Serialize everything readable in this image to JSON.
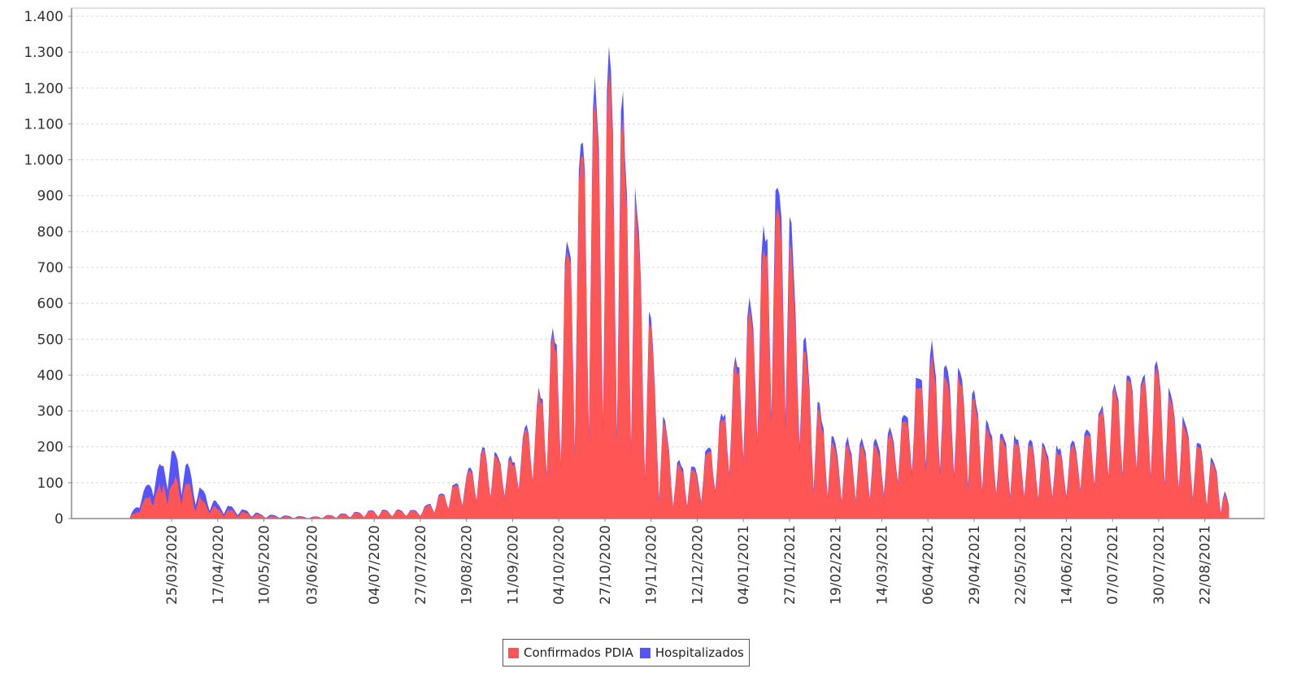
{
  "chart_data": {
    "type": "area",
    "stacked": true,
    "title": "",
    "xlabel": "",
    "ylabel": "",
    "ylim": [
      0,
      1400
    ],
    "y_ticks": [
      0,
      100,
      200,
      300,
      400,
      500,
      600,
      700,
      800,
      900,
      1000,
      1100,
      1200,
      1300,
      1400
    ],
    "y_tick_labels": [
      "0",
      "100",
      "200",
      "300",
      "400",
      "500",
      "600",
      "700",
      "800",
      "900",
      "1.000",
      "1.100",
      "1.200",
      "1.300",
      "1.400"
    ],
    "x_tick_labels": [
      "25/03/2020",
      "17/04/2020",
      "10/05/2020",
      "03/06/2020",
      "04/07/2020",
      "27/07/2020",
      "19/08/2020",
      "11/09/2020",
      "04/10/2020",
      "27/10/2020",
      "19/11/2020",
      "12/12/2020",
      "04/01/2021",
      "27/01/2021",
      "19/02/2021",
      "14/03/2021",
      "06/04/2021",
      "29/04/2021",
      "22/05/2021",
      "14/06/2021",
      "07/07/2021",
      "30/07/2021",
      "22/08/2021"
    ],
    "x_range": [
      "04/03/2020",
      "03/09/2021"
    ],
    "grid": true,
    "legend_position": "bottom",
    "series": [
      {
        "name": "Confirmados PDIA",
        "color": "#ff5555"
      },
      {
        "name": "Hospitalizados",
        "color": "#5555ff"
      }
    ],
    "weekly_envelope_note": "Approximate weekly peak (stacked total) and weekend trough read from the chart; values per tick-interval date",
    "envelope": [
      {
        "date": "04/03/2020",
        "peak": 5,
        "trough": 0,
        "hosp": 2
      },
      {
        "date": "14/03/2020",
        "peak": 110,
        "trough": 60,
        "hosp": 40
      },
      {
        "date": "25/03/2020",
        "peak": 205,
        "trough": 90,
        "hosp": 70
      },
      {
        "date": "01/04/2020",
        "peak": 165,
        "trough": 60,
        "hosp": 50
      },
      {
        "date": "08/04/2020",
        "peak": 90,
        "trough": 30,
        "hosp": 25
      },
      {
        "date": "17/04/2020",
        "peak": 45,
        "trough": 15,
        "hosp": 12
      },
      {
        "date": "10/05/2020",
        "peak": 12,
        "trough": 2,
        "hosp": 3
      },
      {
        "date": "03/06/2020",
        "peak": 5,
        "trough": 0,
        "hosp": 1
      },
      {
        "date": "04/07/2020",
        "peak": 25,
        "trough": 5,
        "hosp": 2
      },
      {
        "date": "27/07/2020",
        "peak": 25,
        "trough": 8,
        "hosp": 2
      },
      {
        "date": "19/08/2020",
        "peak": 130,
        "trough": 40,
        "hosp": 6
      },
      {
        "date": "28/08/2020",
        "peak": 210,
        "trough": 60,
        "hosp": 8
      },
      {
        "date": "11/09/2020",
        "peak": 170,
        "trough": 70,
        "hosp": 8
      },
      {
        "date": "25/09/2020",
        "peak": 380,
        "trough": 120,
        "hosp": 12
      },
      {
        "date": "04/10/2020",
        "peak": 590,
        "trough": 150,
        "hosp": 20
      },
      {
        "date": "11/10/2020",
        "peak": 960,
        "trough": 200,
        "hosp": 25
      },
      {
        "date": "20/10/2020",
        "peak": 1260,
        "trough": 250,
        "hosp": 40
      },
      {
        "date": "27/10/2020",
        "peak": 1350,
        "trough": 280,
        "hosp": 50
      },
      {
        "date": "03/11/2020",
        "peak": 1230,
        "trough": 250,
        "hosp": 60
      },
      {
        "date": "10/11/2020",
        "peak": 990,
        "trough": 200,
        "hosp": 35
      },
      {
        "date": "17/11/2020",
        "peak": 640,
        "trough": 100,
        "hosp": 25
      },
      {
        "date": "24/11/2020",
        "peak": 330,
        "trough": 50,
        "hosp": 15
      },
      {
        "date": "01/12/2020",
        "peak": 175,
        "trough": 30,
        "hosp": 10
      },
      {
        "date": "12/12/2020",
        "peak": 150,
        "trough": 40,
        "hosp": 10
      },
      {
        "date": "22/12/2020",
        "peak": 250,
        "trough": 80,
        "hosp": 10
      },
      {
        "date": "04/01/2021",
        "peak": 540,
        "trough": 180,
        "hosp": 20
      },
      {
        "date": "11/01/2021",
        "peak": 710,
        "trough": 220,
        "hosp": 40
      },
      {
        "date": "18/01/2021",
        "peak": 970,
        "trough": 300,
        "hosp": 60
      },
      {
        "date": "25/01/2021",
        "peak": 980,
        "trough": 300,
        "hosp": 60
      },
      {
        "date": "01/02/2021",
        "peak": 620,
        "trough": 200,
        "hosp": 40
      },
      {
        "date": "08/02/2021",
        "peak": 360,
        "trough": 80,
        "hosp": 20
      },
      {
        "date": "19/02/2021",
        "peak": 220,
        "trough": 50,
        "hosp": 15
      },
      {
        "date": "14/03/2021",
        "peak": 230,
        "trough": 60,
        "hosp": 15
      },
      {
        "date": "24/03/2021",
        "peak": 280,
        "trough": 120,
        "hosp": 15
      },
      {
        "date": "06/04/2021",
        "peak": 505,
        "trough": 150,
        "hosp": 30
      },
      {
        "date": "13/04/2021",
        "peak": 455,
        "trough": 130,
        "hosp": 30
      },
      {
        "date": "20/04/2021",
        "peak": 430,
        "trough": 120,
        "hosp": 25
      },
      {
        "date": "29/04/2021",
        "peak": 380,
        "trough": 90,
        "hosp": 20
      },
      {
        "date": "06/05/2021",
        "peak": 270,
        "trough": 70,
        "hosp": 15
      },
      {
        "date": "22/05/2021",
        "peak": 230,
        "trough": 60,
        "hosp": 12
      },
      {
        "date": "14/06/2021",
        "peak": 200,
        "trough": 60,
        "hosp": 12
      },
      {
        "date": "28/06/2021",
        "peak": 280,
        "trough": 100,
        "hosp": 12
      },
      {
        "date": "07/07/2021",
        "peak": 390,
        "trough": 120,
        "hosp": 12
      },
      {
        "date": "21/07/2021",
        "peak": 410,
        "trough": 140,
        "hosp": 15
      },
      {
        "date": "30/07/2021",
        "peak": 445,
        "trough": 110,
        "hosp": 20
      },
      {
        "date": "06/08/2021",
        "peak": 340,
        "trough": 90,
        "hosp": 15
      },
      {
        "date": "15/08/2021",
        "peak": 260,
        "trough": 60,
        "hosp": 12
      },
      {
        "date": "22/08/2021",
        "peak": 195,
        "trough": 40,
        "hosp": 10
      },
      {
        "date": "29/08/2021",
        "peak": 155,
        "trough": 20,
        "hosp": 8
      },
      {
        "date": "03/09/2021",
        "peak": 40,
        "trough": 0,
        "hosp": 5
      }
    ]
  },
  "legend": {
    "items": [
      {
        "label": "Confirmados PDIA",
        "color": "#ff5555"
      },
      {
        "label": "Hospitalizados",
        "color": "#5555ff"
      }
    ]
  }
}
